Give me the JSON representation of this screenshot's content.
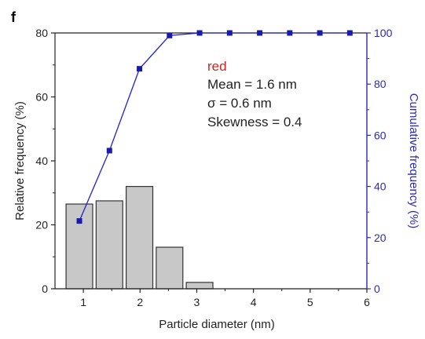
{
  "panel_label": "f",
  "chart_data": {
    "type": "bar",
    "xlabel": "Particle diameter (nm)",
    "ylabel": "Relative frequency (%)",
    "y2label": "Cumulative frequency (%)",
    "xlim": [
      0.5,
      6
    ],
    "ylim": [
      0,
      80
    ],
    "y2lim": [
      0,
      100
    ],
    "x_ticks": [
      1,
      2,
      3,
      4,
      5,
      6
    ],
    "y_ticks": [
      0,
      20,
      40,
      60,
      80
    ],
    "y2_ticks": [
      0,
      20,
      40,
      60,
      80,
      100
    ],
    "bar_width": 0.47,
    "grid": false,
    "bars": {
      "x": [
        0.93,
        1.46,
        1.99,
        2.52,
        3.05
      ],
      "values": [
        26.5,
        27.5,
        32,
        13,
        2
      ]
    },
    "cumulative": {
      "x": [
        0.93,
        1.46,
        1.99,
        2.52,
        3.05,
        3.58,
        4.11,
        4.64,
        5.17,
        5.7
      ],
      "values": [
        26.5,
        54,
        86,
        99,
        100,
        100,
        100,
        100,
        100,
        100
      ]
    },
    "annotations": {
      "sample": "red",
      "lines": [
        "Mean = 1.6 nm",
        "σ = 0.6 nm",
        "Skewness = 0.4"
      ]
    }
  },
  "colors": {
    "bar_fill": "#c8c8c8",
    "bar_stroke": "#333333",
    "cumulative_line": "#2222cc",
    "cumulative_marker": "#1a1aa8",
    "right_axis": "#2a2ab8",
    "sample_label": "#d42020"
  }
}
